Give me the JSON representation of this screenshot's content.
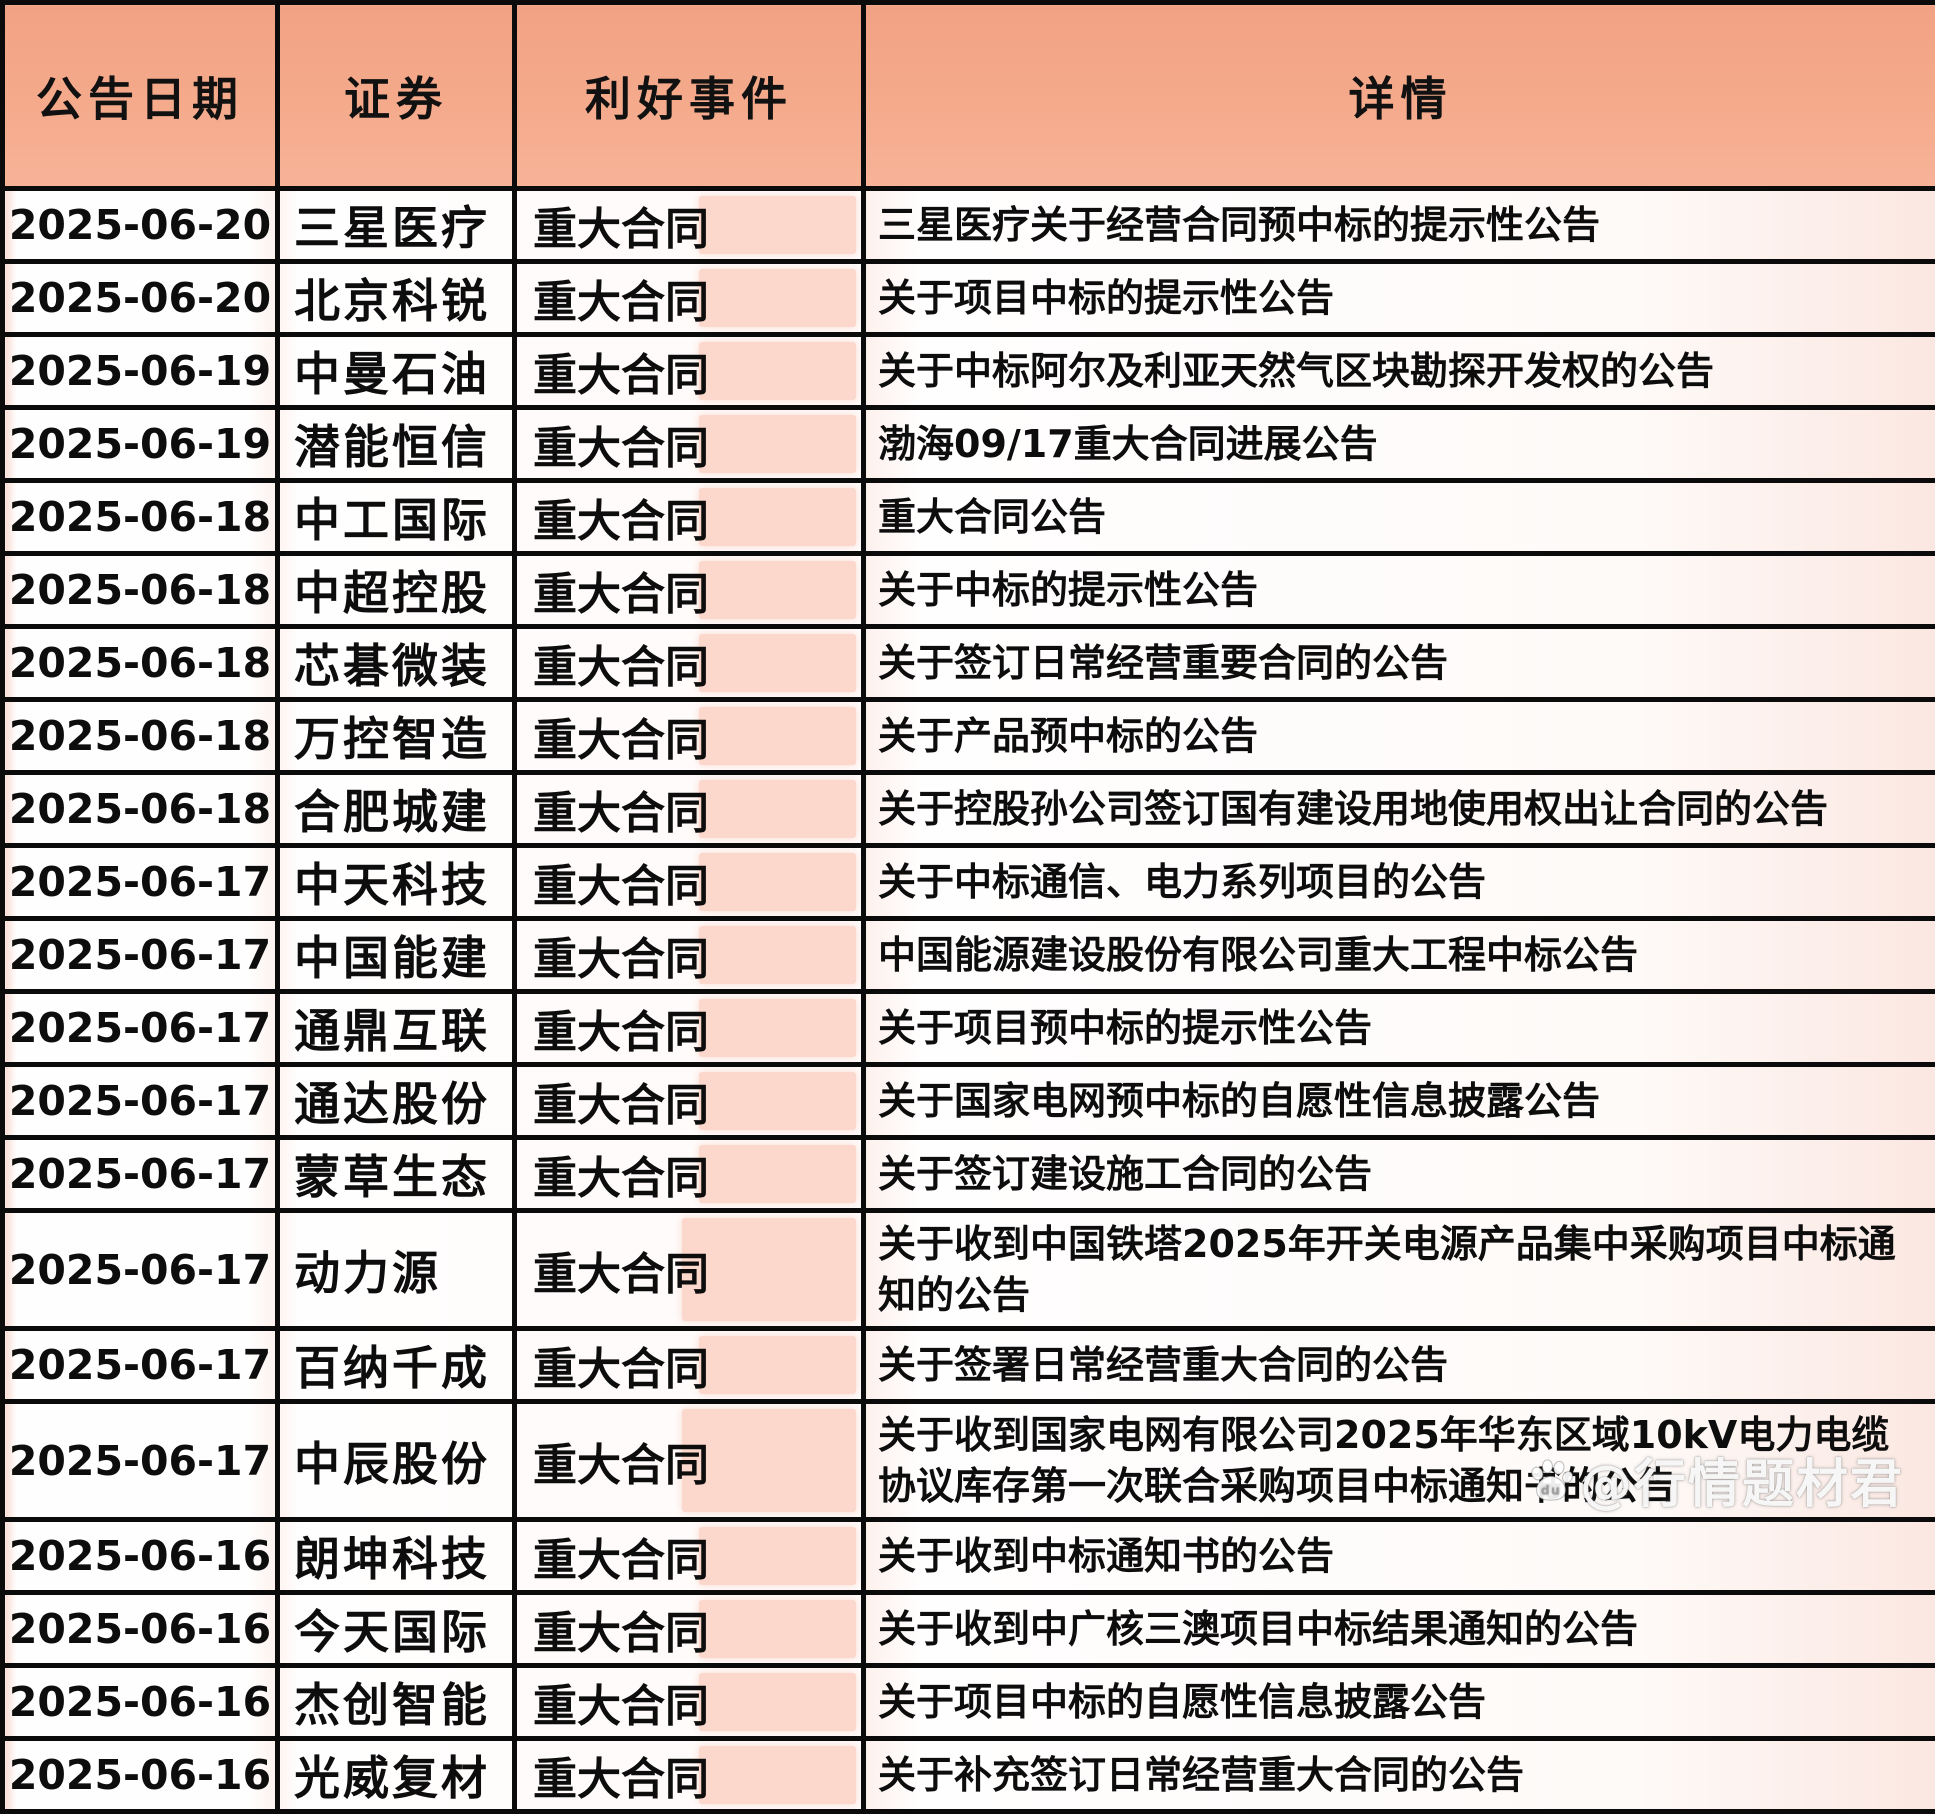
{
  "table": {
    "columns": [
      "公告日期",
      "证券",
      "利好事件",
      "详情"
    ],
    "rows": [
      {
        "date": "2025-06-20",
        "security": "三星医疗",
        "event": "重大合同",
        "detail": "三星医疗关于经营合同预中标的提示性公告"
      },
      {
        "date": "2025-06-20",
        "security": "北京科锐",
        "event": "重大合同",
        "detail": "关于项目中标的提示性公告"
      },
      {
        "date": "2025-06-19",
        "security": "中曼石油",
        "event": "重大合同",
        "detail": "关于中标阿尔及利亚天然气区块勘探开发权的公告"
      },
      {
        "date": "2025-06-19",
        "security": "潜能恒信",
        "event": "重大合同",
        "detail": "渤海09/17重大合同进展公告"
      },
      {
        "date": "2025-06-18",
        "security": "中工国际",
        "event": "重大合同",
        "detail": "重大合同公告"
      },
      {
        "date": "2025-06-18",
        "security": "中超控股",
        "event": "重大合同",
        "detail": "关于中标的提示性公告"
      },
      {
        "date": "2025-06-18",
        "security": "芯碁微装",
        "event": "重大合同",
        "detail": "关于签订日常经营重要合同的公告"
      },
      {
        "date": "2025-06-18",
        "security": "万控智造",
        "event": "重大合同",
        "detail": "关于产品预中标的公告"
      },
      {
        "date": "2025-06-18",
        "security": "合肥城建",
        "event": "重大合同",
        "detail": "关于控股孙公司签订国有建设用地使用权出让合同的公告"
      },
      {
        "date": "2025-06-17",
        "security": "中天科技",
        "event": "重大合同",
        "detail": "关于中标通信、电力系列项目的公告"
      },
      {
        "date": "2025-06-17",
        "security": "中国能建",
        "event": "重大合同",
        "detail": "中国能源建设股份有限公司重大工程中标公告"
      },
      {
        "date": "2025-06-17",
        "security": "通鼎互联",
        "event": "重大合同",
        "detail": "关于项目预中标的提示性公告"
      },
      {
        "date": "2025-06-17",
        "security": "通达股份",
        "event": "重大合同",
        "detail": "关于国家电网预中标的自愿性信息披露公告"
      },
      {
        "date": "2025-06-17",
        "security": "蒙草生态",
        "event": "重大合同",
        "detail": "关于签订建设施工合同的公告"
      },
      {
        "date": "2025-06-17",
        "security": "动力源",
        "event": "重大合同",
        "detail": "关于收到中国铁塔2025年开关电源产品集中采购项目中标通知的公告",
        "tall": true
      },
      {
        "date": "2025-06-17",
        "security": "百纳千成",
        "event": "重大合同",
        "detail": "关于签署日常经营重大合同的公告"
      },
      {
        "date": "2025-06-17",
        "security": "中辰股份",
        "event": "重大合同",
        "detail": "关于收到国家电网有限公司2025年华东区域10kV电力电缆协议库存第一次联合采购项目中标通知书的公告",
        "tall": true
      },
      {
        "date": "2025-06-16",
        "security": "朗坤科技",
        "event": "重大合同",
        "detail": "关于收到中标通知书的公告"
      },
      {
        "date": "2025-06-16",
        "security": "今天国际",
        "event": "重大合同",
        "detail": "关于收到中广核三澳项目中标结果通知的公告"
      },
      {
        "date": "2025-06-16",
        "security": "杰创智能",
        "event": "重大合同",
        "detail": "关于项目中标的自愿性信息披露公告"
      },
      {
        "date": "2025-06-16",
        "security": "光威复材",
        "event": "重大合同",
        "detail": "关于补充签订日常经营重大合同的公告"
      }
    ]
  },
  "watermark": {
    "text": "@行情题材君",
    "paw_label": "du"
  },
  "colors": {
    "header_bg": "#f5aa8c",
    "grid_border": "#0b0b0b",
    "event_highlight": "#fbd7cc",
    "row_bg": "#fffdfc"
  }
}
